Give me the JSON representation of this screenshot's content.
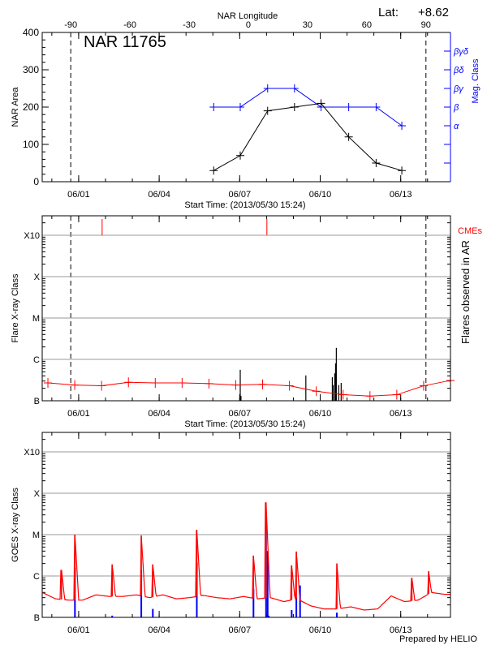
{
  "header": {
    "lat_label": "Lat:",
    "lat_value": "+8.62",
    "credit": "Prepared by HELIO"
  },
  "colors": {
    "area": "#000000",
    "mag_class": "#0000ff",
    "flare_baseline": "#ff0000",
    "cme": "#ff0000",
    "goes_flux": "#ff0000",
    "goes_events": "#0000ff",
    "grid": "#999999"
  },
  "chart_data": [
    {
      "type": "line",
      "title": "NAR 11765",
      "xlabel": "Start Time: (2013/05/30 15:24)",
      "ylabel": "NAR Area",
      "y2label": "Mag. Class",
      "top_xlabel": "NAR Longitude",
      "x_range": [
        "2013-05-30 15:24",
        "2013-06-14 20:30"
      ],
      "xticks": [
        {
          "t": "2013-06-01 00:00",
          "label": "06/01"
        },
        {
          "t": "2013-06-04 00:00",
          "label": "06/04"
        },
        {
          "t": "2013-06-07 00:00",
          "label": "06/07"
        },
        {
          "t": "2013-06-10 00:00",
          "label": "06/10"
        },
        {
          "t": "2013-06-13 00:00",
          "label": "06/13"
        }
      ],
      "ylim": [
        0,
        400
      ],
      "yticks": [
        0,
        100,
        200,
        300,
        400
      ],
      "longitude_axis": {
        "ticks": [
          -90,
          -60,
          -30,
          0,
          30,
          60,
          90
        ],
        "zero_at": "2013-06-07 07:45",
        "deg_per_day": 13.6,
        "limb_lines": [
          -90,
          90
        ]
      },
      "mag_class_levels": [
        "α",
        "β",
        "βγ",
        "βδ",
        "βγδ"
      ],
      "area_series": [
        {
          "t": "2013-06-06 00:45",
          "v": 30
        },
        {
          "t": "2013-06-07 00:30",
          "v": 70
        },
        {
          "t": "2013-06-08 01:00",
          "v": 190
        },
        {
          "t": "2013-06-09 01:00",
          "v": 200
        },
        {
          "t": "2013-06-10 00:45",
          "v": 210
        },
        {
          "t": "2013-06-11 01:30",
          "v": 120
        },
        {
          "t": "2013-06-12 02:00",
          "v": 50
        },
        {
          "t": "2013-06-13 01:00",
          "v": 30
        }
      ],
      "mag_series": [
        {
          "t": "2013-06-06 00:45",
          "v": "β"
        },
        {
          "t": "2013-06-07 00:30",
          "v": "β"
        },
        {
          "t": "2013-06-08 01:00",
          "v": "βγ"
        },
        {
          "t": "2013-06-09 01:00",
          "v": "βγ"
        },
        {
          "t": "2013-06-10 00:45",
          "v": "β"
        },
        {
          "t": "2013-06-11 01:30",
          "v": "β"
        },
        {
          "t": "2013-06-12 02:00",
          "v": "β"
        },
        {
          "t": "2013-06-13 01:00",
          "v": "α"
        }
      ]
    },
    {
      "type": "bar",
      "xlabel": "Start Time: (2013/05/30 15:24)",
      "ylabel": "Flare X-ray Class",
      "y2label": "Flares observed in AR",
      "cme_label": "CMEs",
      "y_scale": "log",
      "yticks": [
        "B",
        "C",
        "M",
        "X",
        "X10"
      ],
      "grid": true,
      "limb_lines": true,
      "cmes": [
        "2013-06-01 21:00",
        "2013-06-08 00:20"
      ],
      "baseline": [
        {
          "t": "2013-05-30 20:30",
          "v": "B2.7"
        },
        {
          "t": "2013-05-31 20:30",
          "v": "B2.4"
        },
        {
          "t": "2013-06-01 20:30",
          "v": "B2.3"
        },
        {
          "t": "2013-06-02 20:30",
          "v": "B2.8"
        },
        {
          "t": "2013-06-03 20:30",
          "v": "B2.7"
        },
        {
          "t": "2013-06-04 20:30",
          "v": "B2.7"
        },
        {
          "t": "2013-06-05 20:30",
          "v": "B2.6"
        },
        {
          "t": "2013-06-06 20:30",
          "v": "B2.4"
        },
        {
          "t": "2013-06-07 20:30",
          "v": "B2.5"
        },
        {
          "t": "2013-06-08 20:30",
          "v": "B2.3"
        },
        {
          "t": "2013-06-09 20:30",
          "v": "B1.7"
        },
        {
          "t": "2013-06-10 20:30",
          "v": "B1.4"
        },
        {
          "t": "2013-06-11 20:30",
          "v": "B1.3"
        },
        {
          "t": "2013-06-12 20:30",
          "v": "B1.4"
        },
        {
          "t": "2013-06-13 20:30",
          "v": "B2.3"
        },
        {
          "t": "2013-06-14 20:30",
          "v": "B3.1"
        }
      ],
      "flares": [
        {
          "t": "2013-06-07 00:30",
          "v": "B5.6"
        },
        {
          "t": "2013-06-07 01:10",
          "v": "B1.3"
        },
        {
          "t": "2013-06-09 11:10",
          "v": "B4.1"
        },
        {
          "t": "2013-06-10 10:50",
          "v": "B3.7"
        },
        {
          "t": "2013-06-10 11:35",
          "v": "B2.4"
        },
        {
          "t": "2013-06-10 13:00",
          "v": "B4.6"
        },
        {
          "t": "2013-06-10 13:45",
          "v": "B8.0"
        },
        {
          "t": "2013-06-10 14:25",
          "v": "C1.9"
        },
        {
          "t": "2013-06-10 16:35",
          "v": "B2.4"
        },
        {
          "t": "2013-06-10 18:45",
          "v": "B2.7"
        }
      ]
    },
    {
      "type": "line",
      "ylabel": "GOES X-ray Class",
      "y_scale": "log",
      "yticks": [
        "B",
        "C",
        "M",
        "X",
        "X10"
      ],
      "grid": true,
      "flux_background": [
        {
          "t": "2013-05-30 15:24",
          "v": "B4.0"
        },
        {
          "t": "2013-05-31 03:24",
          "v": "B2.8"
        },
        {
          "t": "2013-05-31 15:24",
          "v": "B2.6"
        },
        {
          "t": "2013-06-01 03:24",
          "v": "B2.6"
        },
        {
          "t": "2013-06-01 15:24",
          "v": "B3.5"
        },
        {
          "t": "2013-06-02 03:24",
          "v": "B3.2"
        },
        {
          "t": "2013-06-02 15:24",
          "v": "B3.2"
        },
        {
          "t": "2013-06-03 03:24",
          "v": "B3.5"
        },
        {
          "t": "2013-06-03 15:24",
          "v": "B3.0"
        },
        {
          "t": "2013-06-04 03:24",
          "v": "B3.5"
        },
        {
          "t": "2013-06-04 15:24",
          "v": "B2.8"
        },
        {
          "t": "2013-06-05 03:24",
          "v": "B3.0"
        },
        {
          "t": "2013-06-05 15:24",
          "v": "B3.4"
        },
        {
          "t": "2013-06-06 03:24",
          "v": "B3.0"
        },
        {
          "t": "2013-06-06 15:24",
          "v": "B2.8"
        },
        {
          "t": "2013-06-07 03:24",
          "v": "B3.2"
        },
        {
          "t": "2013-06-07 15:24",
          "v": "B2.8"
        },
        {
          "t": "2013-06-08 03:24",
          "v": "B3.0"
        },
        {
          "t": "2013-06-08 15:24",
          "v": "B2.4"
        },
        {
          "t": "2013-06-09 03:24",
          "v": "B2.8"
        },
        {
          "t": "2013-06-09 15:24",
          "v": "B1.9"
        },
        {
          "t": "2013-06-10 03:24",
          "v": "B1.6"
        },
        {
          "t": "2013-06-10 15:24",
          "v": "B1.6"
        },
        {
          "t": "2013-06-11 03:24",
          "v": "B1.8"
        },
        {
          "t": "2013-06-11 15:24",
          "v": "B1.5"
        },
        {
          "t": "2013-06-12 03:24",
          "v": "B1.6"
        },
        {
          "t": "2013-06-12 15:24",
          "v": "B3.3"
        },
        {
          "t": "2013-06-13 03:24",
          "v": "B2.4"
        },
        {
          "t": "2013-06-13 15:24",
          "v": "B2.6"
        },
        {
          "t": "2013-06-14 03:24",
          "v": "B4.0"
        },
        {
          "t": "2013-06-14 15:24",
          "v": "B3.6"
        },
        {
          "t": "2013-06-14 20:30",
          "v": "B3.6"
        }
      ],
      "flux_peaks": [
        {
          "t": "2013-05-31 08:40",
          "v": "C1.4"
        },
        {
          "t": "2013-05-31 20:40",
          "v": "M1.0"
        },
        {
          "t": "2013-06-02 06:00",
          "v": "C1.9"
        },
        {
          "t": "2013-06-03 08:00",
          "v": "C9.5"
        },
        {
          "t": "2013-06-03 18:20",
          "v": "C1.9"
        },
        {
          "t": "2013-06-05 09:40",
          "v": "M1.3"
        },
        {
          "t": "2013-06-07 12:20",
          "v": "C3.1"
        },
        {
          "t": "2013-06-07 23:35",
          "v": "M6.0"
        },
        {
          "t": "2013-06-08 22:30",
          "v": "C1.8"
        },
        {
          "t": "2013-06-09 02:40",
          "v": "C3.9"
        },
        {
          "t": "2013-06-10 14:55",
          "v": "C2.0"
        },
        {
          "t": "2013-06-13 10:00",
          "v": "B9.0"
        },
        {
          "t": "2013-06-14 01:00",
          "v": "C1.3"
        }
      ],
      "events": [
        {
          "t": "2013-05-31 20:40",
          "v": "C1.6"
        },
        {
          "t": "2013-06-02 06:00",
          "v": "B1.1"
        },
        {
          "t": "2013-06-03 08:00",
          "v": "C1.4"
        },
        {
          "t": "2013-06-03 18:20",
          "v": "B1.6"
        },
        {
          "t": "2013-06-05 09:40",
          "v": "C2.1"
        },
        {
          "t": "2013-06-07 12:20",
          "v": "B4.9"
        },
        {
          "t": "2013-06-07 23:35",
          "v": "M1.8"
        },
        {
          "t": "2013-06-08 01:00",
          "v": "C4.0"
        },
        {
          "t": "2013-06-08 02:00",
          "v": "B1.1"
        },
        {
          "t": "2013-06-08 22:30",
          "v": "B1.5"
        },
        {
          "t": "2013-06-09 02:40",
          "v": "B3.0"
        },
        {
          "t": "2013-06-09 06:00",
          "v": "B5.9"
        },
        {
          "t": "2013-06-10 14:55",
          "v": "B1.3"
        }
      ]
    }
  ]
}
